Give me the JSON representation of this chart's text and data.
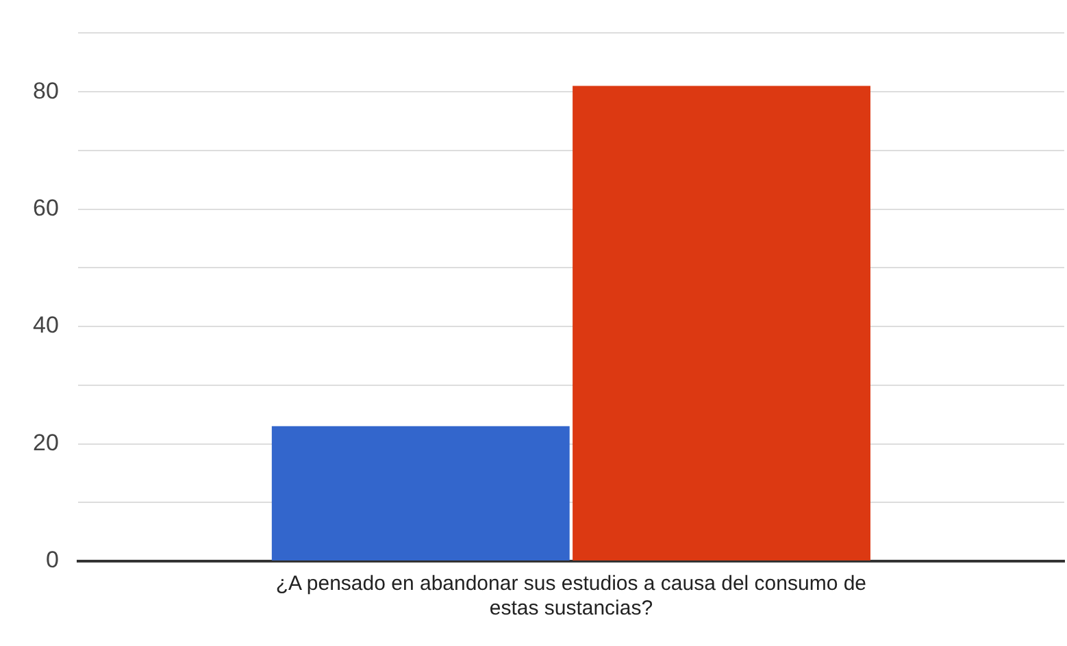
{
  "chart_data": {
    "type": "bar",
    "categories": [
      "¿A pensado en abandonar sus estudios a causa del consumo de estas sustancias?"
    ],
    "series": [
      {
        "color": "#3366cc",
        "values": [
          23
        ]
      },
      {
        "color": "#dc3912",
        "values": [
          81
        ]
      }
    ],
    "ylim": [
      0,
      90
    ],
    "yticks": [
      0,
      {
        "value": 10,
        "label": null
      },
      20,
      {
        "value": 30,
        "label": null
      },
      40,
      {
        "value": 50,
        "label": null
      },
      60,
      {
        "value": 70,
        "label": null
      },
      80,
      {
        "value": 90,
        "label": null
      }
    ],
    "grid": "y",
    "legend": false
  }
}
